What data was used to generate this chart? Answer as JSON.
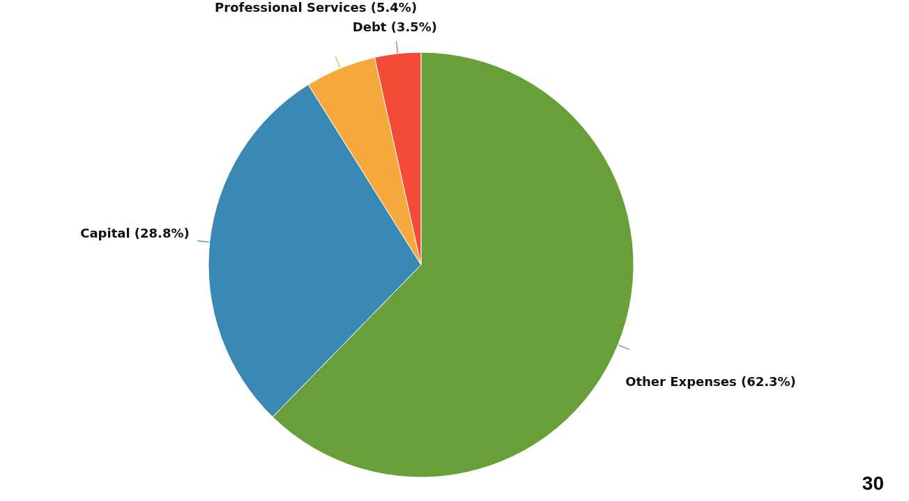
{
  "chart_data": {
    "type": "pie",
    "categories": [
      "Other Expenses",
      "Capital",
      "Professional Services",
      "Debt"
    ],
    "values": [
      62.3,
      28.8,
      5.4,
      3.5
    ],
    "value_labels": [
      "(62.3%)",
      "(28.8%)",
      "(5.4%)",
      "(3.5%)"
    ],
    "colors": [
      "#689f38",
      "#3a88b4",
      "#f4a93a",
      "#f44b36"
    ],
    "annotations": [
      "30"
    ]
  }
}
